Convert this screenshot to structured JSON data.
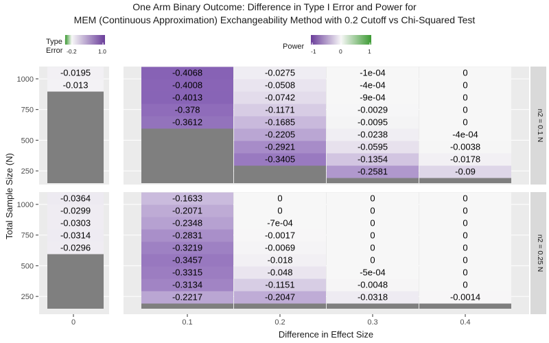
{
  "chart_data": {
    "type": "heatmap",
    "title_line1": "One Arm Binary Outcome: Difference in Type I Error and Power for",
    "title_line2": "MEM (Continuous Approximation) Exchangeability Method with 0.2 Cutoff vs Chi-Squared Test",
    "xlabel": "Difference in Effect Size",
    "ylabel": "Total Sample Size (N)",
    "legend_type1": {
      "title_line1": "Type I",
      "title_line2": "Error",
      "min_label": "-0.2",
      "max_label": "1.0",
      "min": -0.2,
      "max": 1.0
    },
    "legend_power": {
      "title": "Power",
      "ticks": [
        "-1",
        "0",
        "1"
      ],
      "min": -1,
      "max": 1
    },
    "colors": {
      "neg_strong": "#7b52ae",
      "neutral": "#f7f7f7",
      "pos_strong": "#3c9a33",
      "na": "#7f7f7f",
      "panel_bg": "#ebebeb",
      "strip_bg": "#d9d9d9"
    },
    "y_ticks": [
      1000,
      750,
      500,
      250
    ],
    "y_tick_labels": [
      "1000",
      "750",
      "500",
      "250"
    ],
    "y_range": [
      150,
      1050
    ],
    "n_values": [
      1000,
      950,
      900,
      850,
      800,
      750,
      700,
      650,
      600,
      550,
      500,
      450,
      400,
      350,
      300,
      250,
      200
    ],
    "x_left_labels": [
      "0"
    ],
    "x_right_labels": [
      "0.1",
      "0.2",
      "0.3",
      "0.4"
    ],
    "panels": [
      {
        "strip": "n2 = 0.1 N",
        "type1": {
          "values": [
            -0.0195,
            -0.013
          ],
          "labels": [
            "-0.0195",
            "-0.013"
          ]
        },
        "power": [
          {
            "values": [
              -0.4068,
              -0.4008,
              -0.4013,
              -0.378,
              -0.3612
            ],
            "labels": [
              "-0.4068",
              "-0.4008",
              "-0.4013",
              "-0.378",
              "-0.3612"
            ]
          },
          {
            "values": [
              -0.0275,
              -0.0508,
              -0.0742,
              -0.1171,
              -0.1685,
              -0.2205,
              -0.2921,
              -0.3405
            ],
            "labels": [
              "-0.0275",
              "-0.0508",
              "-0.0742",
              "-0.1171",
              "-0.1685",
              "-0.2205",
              "-0.2921",
              "-0.3405"
            ]
          },
          {
            "values": [
              -0.0001,
              -0.0004,
              -0.0009,
              -0.0029,
              -0.0095,
              -0.0238,
              -0.0595,
              -0.1354,
              -0.2581
            ],
            "labels": [
              "-1e-04",
              "-4e-04",
              "-9e-04",
              "-0.0029",
              "-0.0095",
              "-0.0238",
              "-0.0595",
              "-0.1354",
              "-0.2581"
            ]
          },
          {
            "values": [
              0,
              0,
              0,
              0,
              0,
              -0.0004,
              -0.0038,
              -0.0178,
              -0.09
            ],
            "labels": [
              "0",
              "0",
              "0",
              "0",
              "0",
              "-4e-04",
              "-0.0038",
              "-0.0178",
              "-0.09"
            ]
          }
        ]
      },
      {
        "strip": "n2 = 0.25 N",
        "type1": {
          "values": [
            -0.0364,
            -0.0299,
            -0.0303,
            -0.0314,
            -0.0296
          ],
          "labels": [
            "-0.0364",
            "-0.0299",
            "-0.0303",
            "-0.0314",
            "-0.0296"
          ]
        },
        "power": [
          {
            "values": [
              -0.1633,
              -0.2071,
              -0.2348,
              -0.2831,
              -0.3219,
              -0.3457,
              -0.3315,
              -0.3134,
              -0.2217
            ],
            "labels": [
              "-0.1633",
              "-0.2071",
              "-0.2348",
              "-0.2831",
              "-0.3219",
              "-0.3457",
              "-0.3315",
              "-0.3134",
              "-0.2217"
            ]
          },
          {
            "values": [
              0,
              0,
              -0.0007,
              -0.0017,
              -0.0069,
              -0.018,
              -0.048,
              -0.1151,
              -0.2047
            ],
            "labels": [
              "0",
              "0",
              "-7e-04",
              "-0.0017",
              "-0.0069",
              "-0.018",
              "-0.048",
              "-0.1151",
              "-0.2047"
            ]
          },
          {
            "values": [
              0,
              0,
              0,
              0,
              0,
              0,
              -0.0005,
              -0.0048,
              -0.0318
            ],
            "labels": [
              "0",
              "0",
              "0",
              "0",
              "0",
              "0",
              "-5e-04",
              "-0.0048",
              "-0.0318"
            ]
          },
          {
            "values": [
              0,
              0,
              0,
              0,
              0,
              0,
              0,
              0,
              -0.0014
            ],
            "labels": [
              "0",
              "0",
              "0",
              "0",
              "0",
              "0",
              "0",
              "0",
              "-0.0014"
            ]
          }
        ]
      }
    ]
  }
}
